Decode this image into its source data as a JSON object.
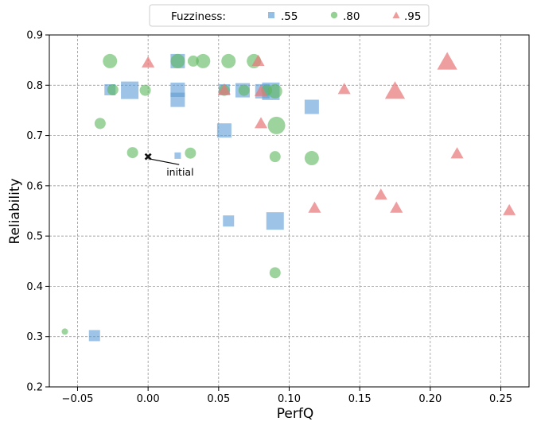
{
  "chart_data": {
    "type": "scatter",
    "xlabel": "PerfQ",
    "ylabel": "Reliability",
    "xlim": [
      -0.07,
      0.27
    ],
    "ylim": [
      0.2,
      0.9
    ],
    "xticks": [
      -0.05,
      0.0,
      0.05,
      0.1,
      0.15,
      0.2,
      0.25
    ],
    "xtick_labels": [
      "−0.05",
      "0.00",
      "0.05",
      "0.10",
      "0.15",
      "0.20",
      "0.25"
    ],
    "yticks": [
      0.2,
      0.3,
      0.4,
      0.5,
      0.6,
      0.7,
      0.8,
      0.9
    ],
    "ytick_labels": [
      "0.2",
      "0.3",
      "0.4",
      "0.5",
      "0.6",
      "0.7",
      "0.8",
      "0.9"
    ],
    "grid": true,
    "legend": {
      "title": "Fuzziness:",
      "placement": "top-center"
    },
    "series": [
      {
        "name": ".55",
        "marker": "square",
        "color": "#5b9bd5",
        "points": [
          {
            "x": -0.038,
            "y": 0.302,
            "s": 2
          },
          {
            "x": -0.027,
            "y": 0.791,
            "s": 2
          },
          {
            "x": -0.013,
            "y": 0.79,
            "s": 4
          },
          {
            "x": 0.021,
            "y": 0.848,
            "s": 3
          },
          {
            "x": 0.021,
            "y": 0.791,
            "s": 3
          },
          {
            "x": 0.021,
            "y": 0.771,
            "s": 3
          },
          {
            "x": 0.021,
            "y": 0.66,
            "s": 1
          },
          {
            "x": 0.054,
            "y": 0.791,
            "s": 2
          },
          {
            "x": 0.054,
            "y": 0.71,
            "s": 3
          },
          {
            "x": 0.057,
            "y": 0.53,
            "s": 2
          },
          {
            "x": 0.067,
            "y": 0.79,
            "s": 3
          },
          {
            "x": 0.081,
            "y": 0.788,
            "s": 3
          },
          {
            "x": 0.087,
            "y": 0.788,
            "s": 4
          },
          {
            "x": 0.09,
            "y": 0.53,
            "s": 4
          },
          {
            "x": 0.116,
            "y": 0.757,
            "s": 3
          }
        ]
      },
      {
        "name": ".80",
        "marker": "circle",
        "color": "#5cb85c",
        "points": [
          {
            "x": -0.059,
            "y": 0.31,
            "s": 1
          },
          {
            "x": -0.034,
            "y": 0.724,
            "s": 2
          },
          {
            "x": -0.027,
            "y": 0.848,
            "s": 3
          },
          {
            "x": -0.025,
            "y": 0.791,
            "s": 2
          },
          {
            "x": -0.011,
            "y": 0.666,
            "s": 2
          },
          {
            "x": -0.002,
            "y": 0.79,
            "s": 2
          },
          {
            "x": 0.021,
            "y": 0.848,
            "s": 3
          },
          {
            "x": 0.032,
            "y": 0.848,
            "s": 2
          },
          {
            "x": 0.039,
            "y": 0.848,
            "s": 3
          },
          {
            "x": 0.03,
            "y": 0.665,
            "s": 2
          },
          {
            "x": 0.054,
            "y": 0.79,
            "s": 2
          },
          {
            "x": 0.057,
            "y": 0.848,
            "s": 3
          },
          {
            "x": 0.068,
            "y": 0.79,
            "s": 2
          },
          {
            "x": 0.075,
            "y": 0.848,
            "s": 3
          },
          {
            "x": 0.084,
            "y": 0.79,
            "s": 2
          },
          {
            "x": 0.09,
            "y": 0.788,
            "s": 3
          },
          {
            "x": 0.091,
            "y": 0.72,
            "s": 4
          },
          {
            "x": 0.09,
            "y": 0.658,
            "s": 2
          },
          {
            "x": 0.116,
            "y": 0.655,
            "s": 3
          },
          {
            "x": 0.09,
            "y": 0.427,
            "s": 2
          }
        ]
      },
      {
        "name": ".95",
        "marker": "triangle",
        "color": "#e8797a",
        "points": [
          {
            "x": 0.0,
            "y": 0.845,
            "s": 2
          },
          {
            "x": 0.054,
            "y": 0.791,
            "s": 2
          },
          {
            "x": 0.078,
            "y": 0.848,
            "s": 2
          },
          {
            "x": 0.08,
            "y": 0.788,
            "s": 2
          },
          {
            "x": 0.08,
            "y": 0.724,
            "s": 2
          },
          {
            "x": 0.118,
            "y": 0.556,
            "s": 2
          },
          {
            "x": 0.139,
            "y": 0.792,
            "s": 2
          },
          {
            "x": 0.165,
            "y": 0.582,
            "s": 2
          },
          {
            "x": 0.175,
            "y": 0.788,
            "s": 4
          },
          {
            "x": 0.176,
            "y": 0.556,
            "s": 2
          },
          {
            "x": 0.212,
            "y": 0.846,
            "s": 4
          },
          {
            "x": 0.219,
            "y": 0.664,
            "s": 2
          },
          {
            "x": 0.256,
            "y": 0.551,
            "s": 2
          }
        ]
      }
    ],
    "initial": {
      "x": 0.0,
      "y": 0.658,
      "label": "initial",
      "marker": "x",
      "color": "#111111",
      "label_x": 0.013,
      "label_y": 0.62
    }
  }
}
